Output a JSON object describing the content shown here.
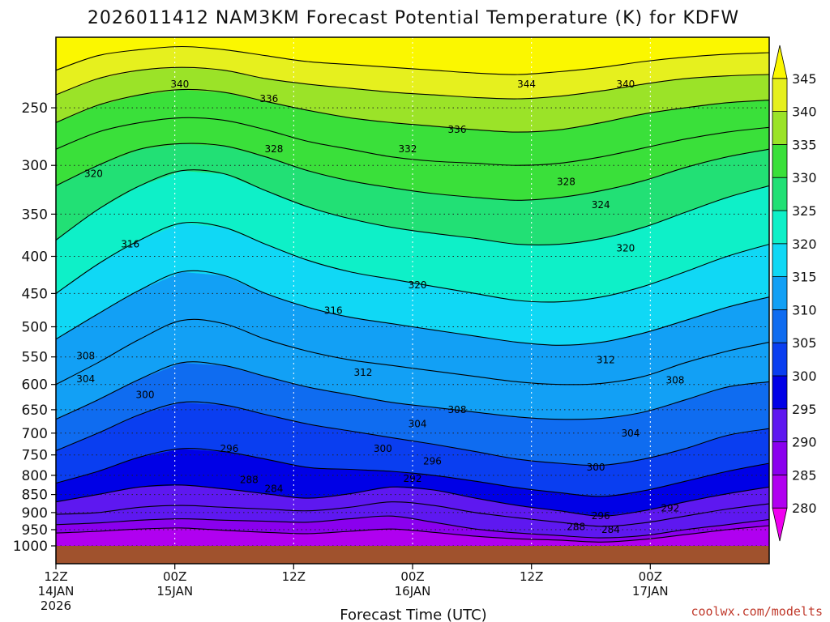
{
  "chart_data": {
    "type": "heatmap",
    "title": "2026011412 NAM3KM Forecast Potential Temperature (K) for KDFW",
    "xlabel": "Forecast Time (UTC)",
    "ylabel": "",
    "x_range_hours": [
      0,
      72
    ],
    "y_range_hpa": [
      1000,
      200
    ],
    "x_ticks": [
      {
        "hour": 0,
        "lines": [
          "12Z",
          "14JAN",
          "2026"
        ]
      },
      {
        "hour": 12,
        "lines": [
          "00Z",
          "15JAN"
        ]
      },
      {
        "hour": 24,
        "lines": [
          "12Z"
        ]
      },
      {
        "hour": 36,
        "lines": [
          "00Z",
          "16JAN"
        ]
      },
      {
        "hour": 48,
        "lines": [
          "12Z"
        ]
      },
      {
        "hour": 60,
        "lines": [
          "00Z",
          "17JAN"
        ]
      }
    ],
    "y_ticks": [
      250,
      300,
      350,
      400,
      450,
      500,
      550,
      600,
      650,
      700,
      750,
      800,
      850,
      900,
      950,
      1000
    ],
    "grid": true,
    "colorbar": {
      "levels": [
        280,
        285,
        290,
        295,
        300,
        305,
        310,
        315,
        320,
        325,
        330,
        335,
        340,
        345
      ],
      "colors": [
        "#f000f0",
        "#b000f0",
        "#8a00ee",
        "#5e18f0",
        "#0000e6",
        "#0a3ef0",
        "#0f6cf0",
        "#12a0f5",
        "#10d8f5",
        "#0ef0c8",
        "#22e075",
        "#3ae03a",
        "#9be328",
        "#e6f01e",
        "#fbf700"
      ]
    },
    "surface_color": "#a0522d",
    "isentropes": [
      {
        "theta": 284,
        "p": [
          960,
          955,
          948,
          945,
          952,
          958,
          962,
          955,
          948,
          958,
          970,
          978,
          982,
          988,
          980,
          965,
          950,
          938
        ]
      },
      {
        "theta": 288,
        "p": [
          935,
          930,
          922,
          918,
          922,
          925,
          928,
          918,
          910,
          928,
          948,
          960,
          968,
          975,
          968,
          950,
          935,
          920
        ]
      },
      {
        "theta": 292,
        "p": [
          905,
          900,
          885,
          880,
          885,
          890,
          895,
          885,
          870,
          880,
          900,
          915,
          928,
          940,
          930,
          910,
          890,
          875
        ]
      },
      {
        "theta": 296,
        "p": [
          870,
          850,
          830,
          825,
          835,
          848,
          860,
          848,
          830,
          838,
          860,
          880,
          895,
          910,
          895,
          870,
          848,
          830
        ]
      },
      {
        "theta": 300,
        "p": [
          820,
          790,
          755,
          735,
          742,
          760,
          780,
          785,
          790,
          800,
          815,
          832,
          845,
          855,
          840,
          815,
          790,
          770
        ]
      },
      {
        "theta": 304,
        "p": [
          740,
          700,
          660,
          635,
          640,
          660,
          680,
          695,
          710,
          725,
          742,
          760,
          770,
          775,
          760,
          735,
          705,
          690
        ]
      },
      {
        "theta": 308,
        "p": [
          670,
          630,
          590,
          560,
          565,
          585,
          605,
          620,
          635,
          645,
          655,
          665,
          670,
          668,
          655,
          630,
          605,
          595
        ]
      },
      {
        "theta": 312,
        "p": [
          600,
          560,
          520,
          490,
          495,
          520,
          540,
          555,
          565,
          575,
          585,
          595,
          600,
          598,
          585,
          560,
          540,
          525
        ]
      },
      {
        "theta": 316,
        "p": [
          520,
          480,
          445,
          420,
          425,
          450,
          470,
          485,
          495,
          505,
          515,
          525,
          530,
          525,
          510,
          490,
          470,
          455
        ]
      },
      {
        "theta": 320,
        "p": [
          450,
          410,
          380,
          360,
          365,
          385,
          405,
          420,
          430,
          440,
          450,
          460,
          462,
          455,
          440,
          420,
          400,
          385
        ]
      },
      {
        "theta": 324,
        "p": [
          380,
          345,
          320,
          305,
          308,
          325,
          342,
          355,
          365,
          372,
          378,
          385,
          385,
          378,
          365,
          348,
          332,
          320
        ]
      },
      {
        "theta": 328,
        "p": [
          320,
          300,
          285,
          280,
          282,
          292,
          305,
          315,
          322,
          328,
          332,
          335,
          332,
          325,
          315,
          302,
          292,
          285
        ]
      },
      {
        "theta": 332,
        "p": [
          285,
          270,
          262,
          258,
          260,
          268,
          278,
          285,
          292,
          296,
          298,
          300,
          298,
          292,
          284,
          276,
          270,
          266
        ]
      },
      {
        "theta": 336,
        "p": [
          262,
          248,
          240,
          236,
          238,
          245,
          252,
          258,
          262,
          265,
          268,
          270,
          268,
          262,
          255,
          250,
          246,
          244
        ]
      },
      {
        "theta": 340,
        "p": [
          240,
          228,
          222,
          220,
          222,
          228,
          232,
          235,
          238,
          240,
          242,
          243,
          241,
          237,
          232,
          228,
          226,
          225
        ]
      },
      {
        "theta": 344,
        "p": [
          222,
          212,
          208,
          206,
          208,
          212,
          216,
          218,
          220,
          222,
          224,
          225,
          223,
          220,
          216,
          213,
          211,
          210
        ]
      }
    ],
    "contour_labels": [
      {
        "text": "340",
        "hour": 12.5,
        "hpa": 232
      },
      {
        "text": "344",
        "hour": 47.5,
        "hpa": 232
      },
      {
        "text": "340",
        "hour": 57.5,
        "hpa": 232
      },
      {
        "text": "336",
        "hour": 21.5,
        "hpa": 243
      },
      {
        "text": "336",
        "hour": 40.5,
        "hpa": 268
      },
      {
        "text": "328",
        "hour": 22,
        "hpa": 285
      },
      {
        "text": "332",
        "hour": 35.5,
        "hpa": 285
      },
      {
        "text": "320",
        "hour": 3.8,
        "hpa": 308
      },
      {
        "text": "328",
        "hour": 51.5,
        "hpa": 316
      },
      {
        "text": "324",
        "hour": 55,
        "hpa": 340
      },
      {
        "text": "316",
        "hour": 7.5,
        "hpa": 385
      },
      {
        "text": "320",
        "hour": 57.5,
        "hpa": 390
      },
      {
        "text": "320",
        "hour": 36.5,
        "hpa": 438
      },
      {
        "text": "316",
        "hour": 28,
        "hpa": 475
      },
      {
        "text": "308",
        "hour": 3,
        "hpa": 548
      },
      {
        "text": "312",
        "hour": 31,
        "hpa": 578
      },
      {
        "text": "312",
        "hour": 55.5,
        "hpa": 555
      },
      {
        "text": "304",
        "hour": 3,
        "hpa": 590
      },
      {
        "text": "308",
        "hour": 62.5,
        "hpa": 592
      },
      {
        "text": "300",
        "hour": 9,
        "hpa": 620
      },
      {
        "text": "308",
        "hour": 40.5,
        "hpa": 650
      },
      {
        "text": "304",
        "hour": 36.5,
        "hpa": 680
      },
      {
        "text": "304",
        "hour": 58,
        "hpa": 700
      },
      {
        "text": "296",
        "hour": 17.5,
        "hpa": 735
      },
      {
        "text": "300",
        "hour": 33,
        "hpa": 735
      },
      {
        "text": "296",
        "hour": 38,
        "hpa": 765
      },
      {
        "text": "300",
        "hour": 54.5,
        "hpa": 780
      },
      {
        "text": "292",
        "hour": 36,
        "hpa": 808
      },
      {
        "text": "288",
        "hour": 19.5,
        "hpa": 812
      },
      {
        "text": "284",
        "hour": 22,
        "hpa": 835
      },
      {
        "text": "292",
        "hour": 62,
        "hpa": 888
      },
      {
        "text": "296",
        "hour": 55,
        "hpa": 910
      },
      {
        "text": "288",
        "hour": 52.5,
        "hpa": 942
      },
      {
        "text": "284",
        "hour": 56,
        "hpa": 950
      }
    ]
  },
  "credit": "coolwx.com/modelts"
}
